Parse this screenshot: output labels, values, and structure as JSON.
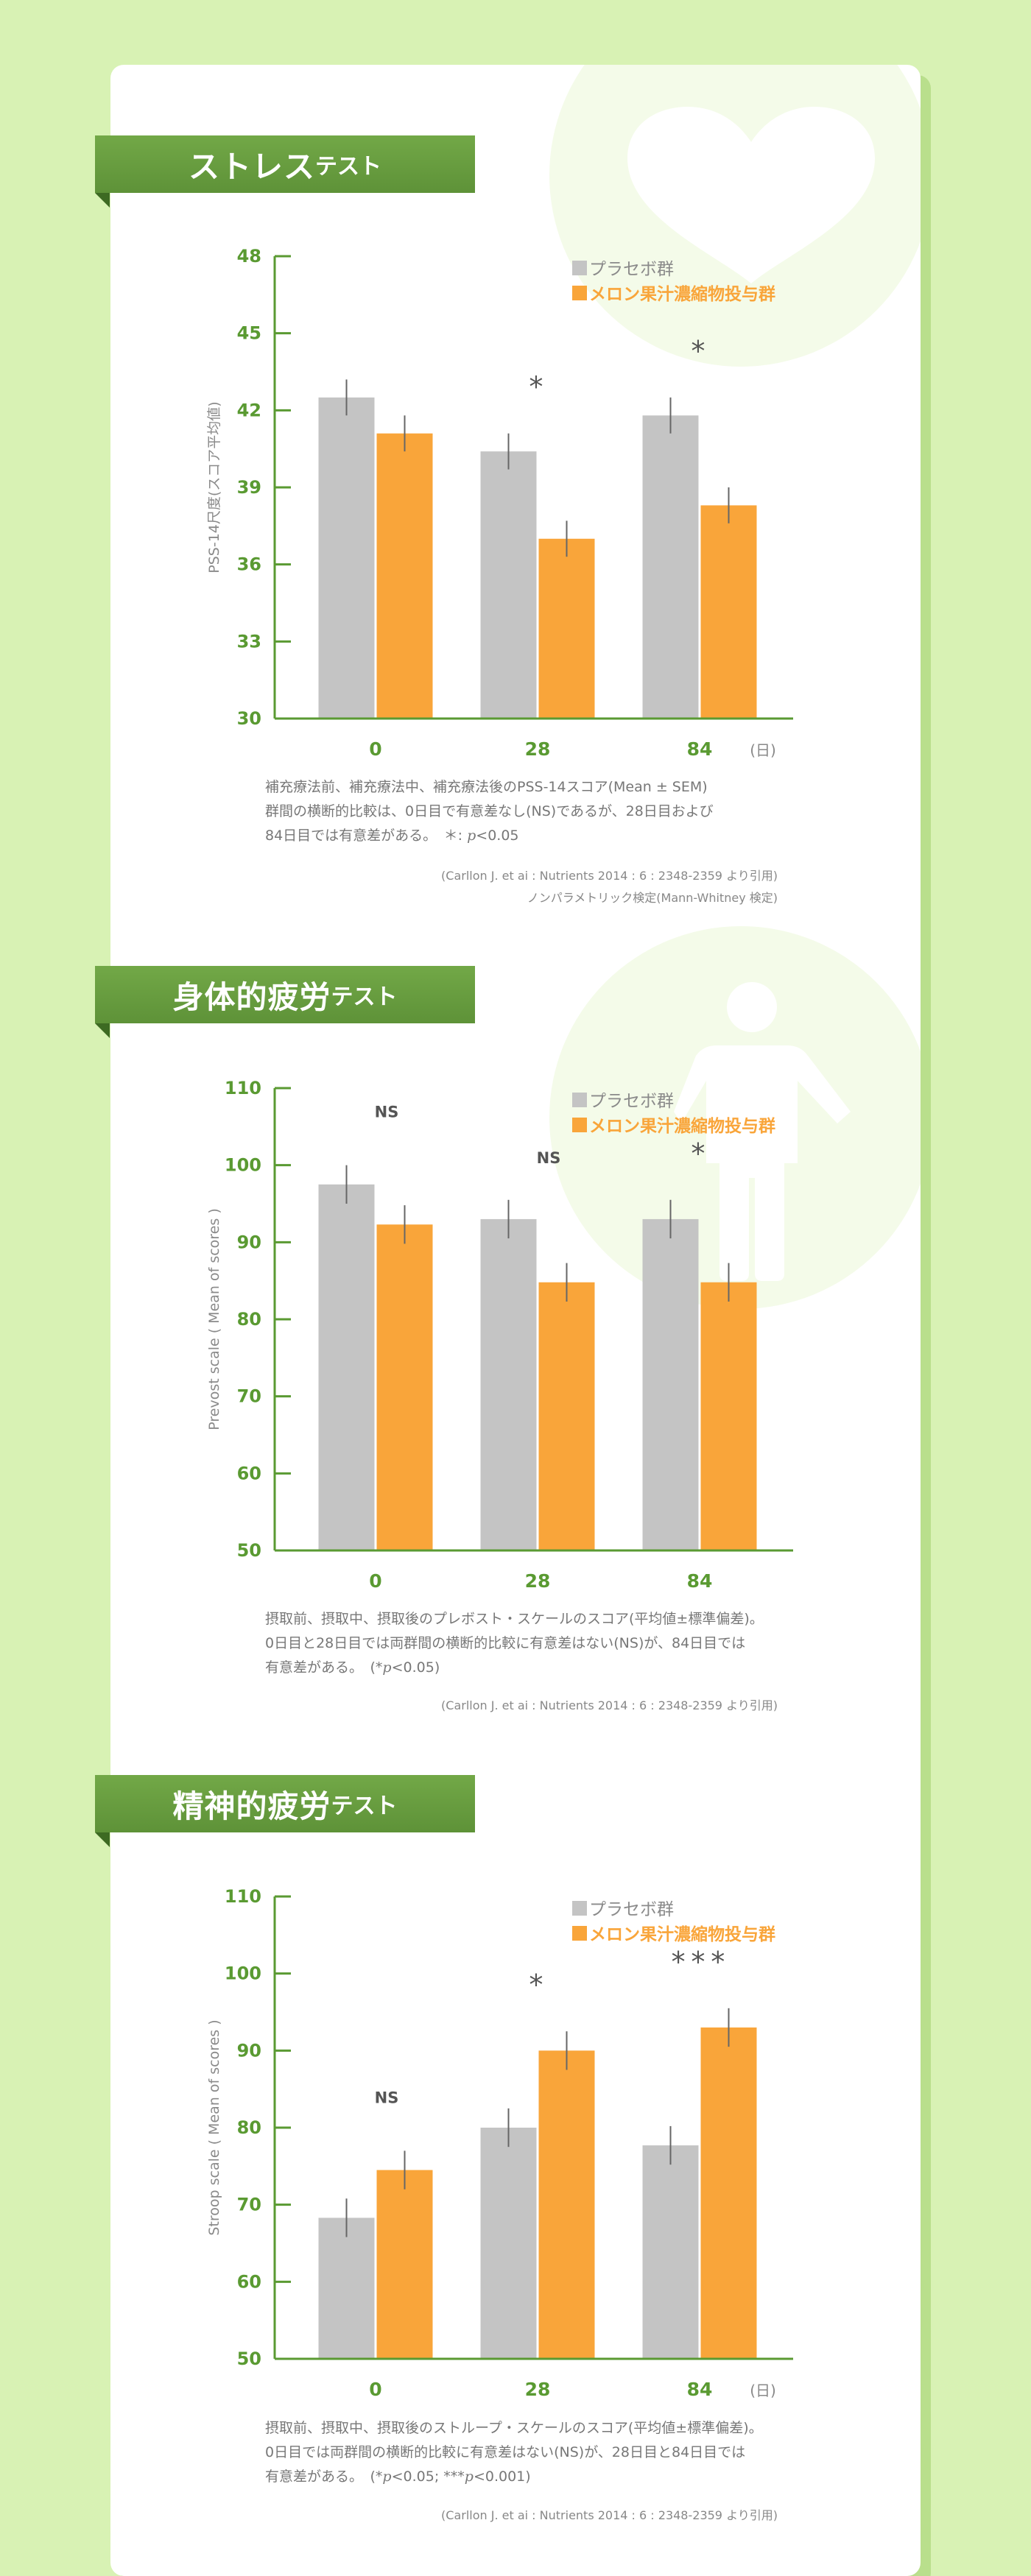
{
  "colors": {
    "background": "#d8f2b4",
    "ribbon": "#68a040",
    "axis": "#5a9a32",
    "placebo": "#c4c4c4",
    "treatment": "#f9a53a"
  },
  "sections": [
    {
      "title_main": "ストレス",
      "title_sub": "テスト",
      "deco_icon": "heart-icon",
      "caption_lines": [
        "補充療法前、補充療法中、補充療法後のPSS-14スコア(Mean ± SEM)",
        "群間の横断的比較は、0日目で有意差なし(NS)であるが、28日目および",
        "84日目では有意差がある。　＊: "
      ],
      "caption_p": "p",
      "caption_tail": "<0.05",
      "citation": "(Carllon J. et ai : Nutrients 2014 : 6 : 2348-2359 より引用)",
      "note": "ノンパラメトリック検定(Mann-Whitney 検定)"
    },
    {
      "title_main": "身体的疲労",
      "title_sub": "テスト",
      "deco_icon": "person-icon",
      "caption_lines": [
        "摂取前、摂取中、摂取後のプレボスト・スケールのスコア(平均値±標準偏差)。",
        "0日目と28日目では両群間の横断的比較に有意差はない(NS)が、84日目では",
        "有意差がある。　(*"
      ],
      "caption_p": "p",
      "caption_tail": "<0.05)",
      "citation": "(Carllon J. et ai : Nutrients 2014 : 6 : 2348-2359 より引用)"
    },
    {
      "title_main": "精神的疲労",
      "title_sub": "テスト",
      "caption_lines": [
        "摂取前、摂取中、摂取後のストループ・スケールのスコア(平均値±標準偏差)。",
        "0日目では両群間の横断的比較に有意差はない(NS)が、28日目と84日目では",
        "有意差がある。　(*"
      ],
      "caption_p": "p",
      "caption_tail": "<0.05; ***",
      "caption_p2": "p",
      "caption_tail2": "<0.001)",
      "citation": "(Carllon J. et ai : Nutrients 2014 : 6 : 2348-2359 より引用)"
    }
  ],
  "chart_data": [
    {
      "type": "bar",
      "ylabel": "PSS-14尺度(スコア平均値)",
      "ylim": [
        30,
        48
      ],
      "yticks": [
        30,
        33,
        36,
        39,
        42,
        45,
        48
      ],
      "categories": [
        "0",
        "28",
        "84"
      ],
      "x_unit": "(日)",
      "legend_position": "top-right",
      "series": [
        {
          "name": "プラセボ群",
          "values": [
            42.5,
            40.4,
            41.8
          ],
          "errors": [
            0.7,
            0.7,
            0.7
          ]
        },
        {
          "name": "メロン果汁濃縮物投与群",
          "values": [
            41.1,
            37.0,
            38.3
          ],
          "errors": [
            0.7,
            0.7,
            0.7
          ]
        }
      ],
      "annotations": [
        "",
        "*",
        "*"
      ]
    },
    {
      "type": "bar",
      "ylabel": "Prevost scale ( Mean of scores )",
      "ylim": [
        50,
        110
      ],
      "yticks": [
        50,
        60,
        70,
        80,
        90,
        100,
        110
      ],
      "categories": [
        "0",
        "28",
        "84"
      ],
      "legend_position": "top-right",
      "series": [
        {
          "name": "プラセボ群",
          "values": [
            97.5,
            93.0,
            93.0
          ],
          "errors": [
            2.5,
            2.5,
            2.5
          ]
        },
        {
          "name": "メロン果汁濃縮物投与群",
          "values": [
            92.3,
            84.8,
            84.8
          ],
          "errors": [
            2.5,
            2.5,
            2.5
          ]
        }
      ],
      "annotations": [
        "NS",
        "NS",
        "*"
      ]
    },
    {
      "type": "bar",
      "ylabel": "Stroop scale ( Mean of scores )",
      "ylim": [
        50,
        110
      ],
      "yticks": [
        50,
        60,
        70,
        80,
        90,
        100,
        110
      ],
      "categories": [
        "0",
        "28",
        "84"
      ],
      "x_unit": "(日)",
      "legend_position": "top-right",
      "series": [
        {
          "name": "プラセボ群",
          "values": [
            68.3,
            80.0,
            77.7
          ],
          "errors": [
            2.5,
            2.5,
            2.5
          ]
        },
        {
          "name": "メロン果汁濃縮物投与群",
          "values": [
            74.5,
            90.0,
            93.0
          ],
          "errors": [
            2.5,
            2.5,
            2.5
          ]
        }
      ],
      "annotations": [
        "NS",
        "*",
        "***"
      ]
    }
  ]
}
